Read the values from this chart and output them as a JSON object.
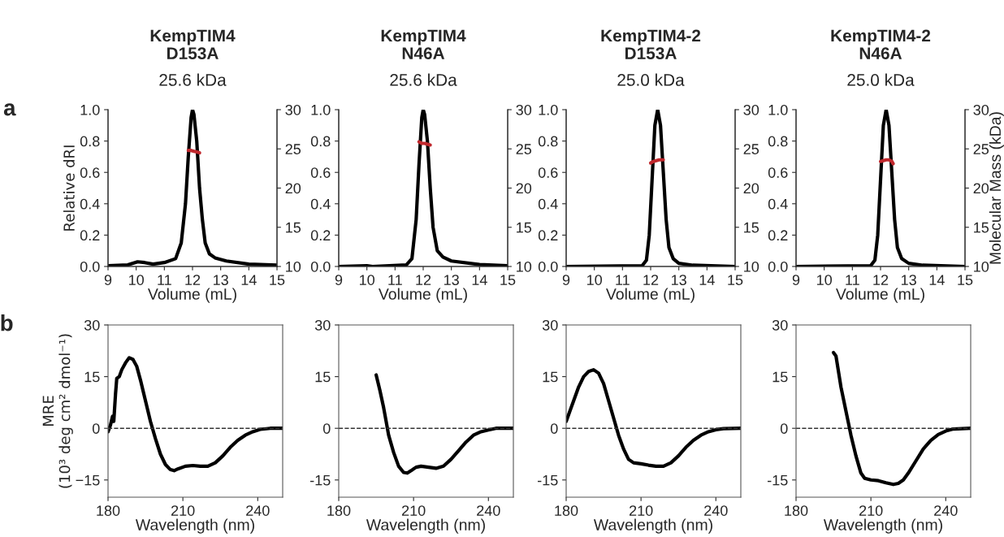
{
  "chart_data": [
    {
      "type": "line",
      "title": "KempTIM4\nD153A",
      "subtitle": "25.6 kDa",
      "annotations": [
        "a"
      ],
      "xlabel": "Volume (mL)",
      "ylabel": "Relative dRI",
      "xlim": [
        9,
        15
      ],
      "xticks": [
        9,
        10,
        11,
        12,
        13,
        14,
        15
      ],
      "ylim": [
        0,
        1.0
      ],
      "yticks": [
        {
          "value": 0,
          "label": "0.0"
        },
        {
          "value": 0.2,
          "label": "0.2"
        },
        {
          "value": 0.4,
          "label": "0.4"
        },
        {
          "value": 0.6,
          "label": "0.6"
        },
        {
          "value": 0.8,
          "label": "0.8"
        },
        {
          "value": 1.0,
          "label": "1.0"
        }
      ],
      "y2lim": [
        10,
        30
      ],
      "y2ticks": [
        10,
        15,
        20,
        25,
        30
      ],
      "grid": false,
      "legend": false,
      "series": [
        {
          "color": "#000000",
          "x": [
            9,
            9.7,
            10.05,
            10.3,
            10.6,
            11.0,
            11.4,
            11.6,
            11.75,
            11.85,
            11.95,
            12.0,
            12.05,
            12.15,
            12.25,
            12.35,
            12.45,
            12.6,
            12.8,
            13.2,
            14,
            15
          ],
          "values": [
            0.005,
            0.01,
            0.03,
            0.025,
            0.015,
            0.025,
            0.05,
            0.15,
            0.4,
            0.7,
            0.95,
            1.0,
            0.97,
            0.8,
            0.5,
            0.3,
            0.15,
            0.08,
            0.055,
            0.035,
            0.015,
            0.008
          ]
        },
        {
          "color": "#c0282d",
          "axis": "y2",
          "x": [
            11.85,
            11.95,
            12.05,
            12.15,
            12.25
          ],
          "values": [
            24.8,
            24.8,
            24.7,
            24.6,
            24.5
          ]
        }
      ]
    },
    {
      "type": "line",
      "title": "KempTIM4\nN46A",
      "subtitle": "25.6 kDa",
      "xlabel": "Volume (mL)",
      "xlim": [
        9,
        15
      ],
      "xticks": [
        9,
        10,
        11,
        12,
        13,
        14,
        15
      ],
      "ylim": [
        0,
        1.0
      ],
      "yticks": [
        {
          "value": 0,
          "label": "0.0"
        },
        {
          "value": 0.2,
          "label": "0.2"
        },
        {
          "value": 0.4,
          "label": "0.4"
        },
        {
          "value": 0.6,
          "label": "0.6"
        },
        {
          "value": 0.8,
          "label": "0.8"
        },
        {
          "value": 1.0,
          "label": "1.0"
        }
      ],
      "y2lim": [
        10,
        30
      ],
      "y2ticks": [
        10,
        15,
        20,
        25,
        30
      ],
      "grid": false,
      "legend": false,
      "series": [
        {
          "color": "#000000",
          "x": [
            9,
            10,
            10.2,
            11.4,
            11.6,
            11.75,
            11.85,
            11.95,
            12.0,
            12.05,
            12.15,
            12.25,
            12.35,
            12.5,
            12.7,
            13,
            14,
            15
          ],
          "values": [
            0,
            0.005,
            0,
            0.01,
            0.05,
            0.3,
            0.65,
            0.95,
            1.0,
            0.97,
            0.8,
            0.5,
            0.25,
            0.1,
            0.06,
            0.035,
            0.012,
            0.005
          ]
        },
        {
          "color": "#c0282d",
          "axis": "y2",
          "x": [
            11.85,
            11.95,
            12.05,
            12.15,
            12.25
          ],
          "values": [
            25.9,
            25.7,
            25.7,
            25.6,
            25.5
          ]
        }
      ]
    },
    {
      "type": "line",
      "title": "KempTIM4-2\nD153A",
      "subtitle": "25.0 kDa",
      "xlabel": "Volume (mL)",
      "xlim": [
        9,
        15
      ],
      "xticks": [
        9,
        10,
        11,
        12,
        13,
        14,
        15
      ],
      "ylim": [
        0,
        1.0
      ],
      "yticks": [
        {
          "value": 0,
          "label": "0.0"
        },
        {
          "value": 0.2,
          "label": "0.2"
        },
        {
          "value": 0.4,
          "label": "0.4"
        },
        {
          "value": 0.6,
          "label": "0.6"
        },
        {
          "value": 0.8,
          "label": "0.8"
        },
        {
          "value": 1.0,
          "label": "1.0"
        }
      ],
      "y2lim": [
        10,
        30
      ],
      "y2ticks": [
        10,
        15,
        20,
        25,
        30
      ],
      "grid": false,
      "legend": false,
      "series": [
        {
          "color": "#000000",
          "x": [
            9,
            11.7,
            11.85,
            11.95,
            12.05,
            12.15,
            12.25,
            12.35,
            12.45,
            12.55,
            12.65,
            12.8,
            13.0,
            13.5,
            15
          ],
          "values": [
            0,
            0.005,
            0.04,
            0.2,
            0.55,
            0.9,
            1.0,
            0.9,
            0.6,
            0.3,
            0.12,
            0.05,
            0.02,
            0.008,
            0
          ]
        },
        {
          "color": "#c0282d",
          "axis": "y2",
          "x": [
            12.0,
            12.1,
            12.2,
            12.3,
            12.45
          ],
          "values": [
            23.2,
            23.4,
            23.5,
            23.6,
            23.6
          ]
        }
      ]
    },
    {
      "type": "line",
      "title": "KempTIM4-2\nN46A",
      "subtitle": "25.0 kDa",
      "xlabel": "Volume (mL)",
      "y2label": "Molecular Mass (kDa)",
      "xlim": [
        9,
        15
      ],
      "xticks": [
        9,
        10,
        11,
        12,
        13,
        14,
        15
      ],
      "ylim": [
        0,
        1.0
      ],
      "yticks": [
        {
          "value": 0,
          "label": "0.0"
        },
        {
          "value": 0.2,
          "label": "0.2"
        },
        {
          "value": 0.4,
          "label": "0.4"
        },
        {
          "value": 0.6,
          "label": "0.6"
        },
        {
          "value": 0.8,
          "label": "0.8"
        },
        {
          "value": 1.0,
          "label": "1.0"
        }
      ],
      "y2lim": [
        10,
        30
      ],
      "y2ticks": [
        10,
        15,
        20,
        25,
        30
      ],
      "grid": false,
      "legend": false,
      "series": [
        {
          "color": "#000000",
          "x": [
            9,
            11.65,
            11.8,
            11.9,
            12.0,
            12.1,
            12.2,
            12.3,
            12.4,
            12.5,
            12.6,
            12.75,
            13.0,
            13.5,
            15
          ],
          "values": [
            0,
            0.005,
            0.04,
            0.2,
            0.55,
            0.9,
            1.0,
            0.9,
            0.6,
            0.3,
            0.12,
            0.05,
            0.02,
            0.008,
            0
          ]
        },
        {
          "color": "#c0282d",
          "axis": "y2",
          "x": [
            12.0,
            12.1,
            12.2,
            12.3,
            12.4,
            12.45
          ],
          "values": [
            23.4,
            23.5,
            23.6,
            23.6,
            23.4,
            23.1
          ]
        }
      ]
    },
    {
      "type": "line",
      "annotations": [
        "b"
      ],
      "xlabel": "Wavelength (nm)",
      "ylabel": "MRE\n(10³ deg cm² dmol⁻¹)",
      "xlim": [
        180,
        250
      ],
      "xticks": [
        180,
        210,
        240
      ],
      "ylim": [
        -20,
        30
      ],
      "yticks": [
        {
          "value": -15,
          "label": "−15"
        },
        0,
        15,
        30
      ],
      "grid": false,
      "legend": false,
      "ref_lines": [
        {
          "axis": "y",
          "value": 0,
          "color": "#333333",
          "line_style": "dashed"
        }
      ],
      "series": [
        {
          "color": "#000000",
          "x": [
            180,
            181,
            181.8,
            182.3,
            183,
            183.5,
            184.5,
            185.5,
            187,
            188.5,
            190,
            191.5,
            193,
            195,
            197,
            199,
            201,
            203,
            205,
            206.5,
            208,
            211,
            214,
            217,
            220,
            223,
            226,
            229,
            232,
            235,
            238,
            241,
            245,
            250
          ],
          "values": [
            -1,
            1,
            3.5,
            2,
            10,
            14.5,
            15,
            17,
            19,
            20.5,
            20,
            18,
            14,
            8,
            2,
            -3,
            -7.5,
            -10.5,
            -12,
            -12.3,
            -11.8,
            -11,
            -10.8,
            -11,
            -11,
            -10,
            -8,
            -5.5,
            -3.5,
            -2,
            -1,
            -0.3,
            0,
            0
          ]
        }
      ]
    },
    {
      "type": "line",
      "xlabel": "Wavelength (nm)",
      "xlim": [
        180,
        250
      ],
      "xticks": [
        180,
        210,
        240
      ],
      "ylim": [
        -20,
        30
      ],
      "yticks": [
        {
          "value": -15,
          "label": "-15"
        },
        0,
        15,
        30
      ],
      "grid": false,
      "legend": false,
      "ref_lines": [
        {
          "axis": "y",
          "value": 0,
          "color": "#333333",
          "line_style": "dashed"
        }
      ],
      "series": [
        {
          "color": "#000000",
          "x": [
            195,
            196.5,
            198,
            199,
            200,
            202,
            204,
            206,
            207.5,
            209,
            211,
            213,
            216,
            219,
            222,
            225,
            228,
            231,
            234,
            237,
            240,
            243,
            250
          ],
          "values": [
            15.5,
            11,
            6,
            2,
            -2,
            -7,
            -11,
            -12.8,
            -13,
            -12.3,
            -11.3,
            -11,
            -11.3,
            -11.6,
            -11,
            -9,
            -6.5,
            -4,
            -2,
            -1,
            -0.5,
            0,
            0
          ]
        }
      ]
    },
    {
      "type": "line",
      "xlabel": "Wavelength (nm)",
      "xlim": [
        180,
        250
      ],
      "xticks": [
        180,
        210,
        240
      ],
      "ylim": [
        -20,
        30
      ],
      "yticks": [
        {
          "value": -15,
          "label": "-15"
        },
        0,
        15,
        30
      ],
      "grid": false,
      "legend": false,
      "ref_lines": [
        {
          "axis": "y",
          "value": 0,
          "color": "#333333",
          "line_style": "dashed"
        }
      ],
      "series": [
        {
          "color": "#000000",
          "x": [
            180,
            181,
            183,
            185,
            187,
            189,
            191,
            193,
            195,
            197,
            199,
            201,
            203,
            205,
            207,
            210,
            213,
            216,
            219,
            222,
            225,
            228,
            231,
            234,
            237,
            240,
            243,
            250
          ],
          "values": [
            2,
            4,
            8,
            12,
            15,
            16.5,
            17,
            16,
            13,
            8,
            3,
            -2,
            -6,
            -9,
            -10,
            -10.3,
            -10.7,
            -11,
            -11,
            -10,
            -8,
            -5.5,
            -3.5,
            -2,
            -1,
            -0.4,
            -0.1,
            0
          ]
        }
      ]
    },
    {
      "type": "line",
      "xlabel": "Wavelength (nm)",
      "xlim": [
        180,
        250
      ],
      "xticks": [
        180,
        210,
        240
      ],
      "ylim": [
        -20,
        30
      ],
      "yticks": [
        {
          "value": -15,
          "label": "-15"
        },
        0,
        15,
        30
      ],
      "grid": false,
      "legend": false,
      "ref_lines": [
        {
          "axis": "y",
          "value": 0,
          "color": "#333333",
          "line_style": "dashed"
        }
      ],
      "series": [
        {
          "color": "#000000",
          "x": [
            195,
            196,
            198,
            200,
            202,
            204,
            206,
            207.5,
            210,
            213,
            216,
            219,
            221,
            223,
            225,
            228,
            231,
            234,
            237,
            240,
            243,
            250
          ],
          "values": [
            22,
            21,
            12,
            5,
            -2,
            -8,
            -13,
            -14.5,
            -15,
            -15.2,
            -15.8,
            -16.3,
            -16,
            -15,
            -13,
            -9.5,
            -6,
            -3.5,
            -1.8,
            -0.8,
            -0.2,
            0
          ]
        }
      ]
    }
  ]
}
